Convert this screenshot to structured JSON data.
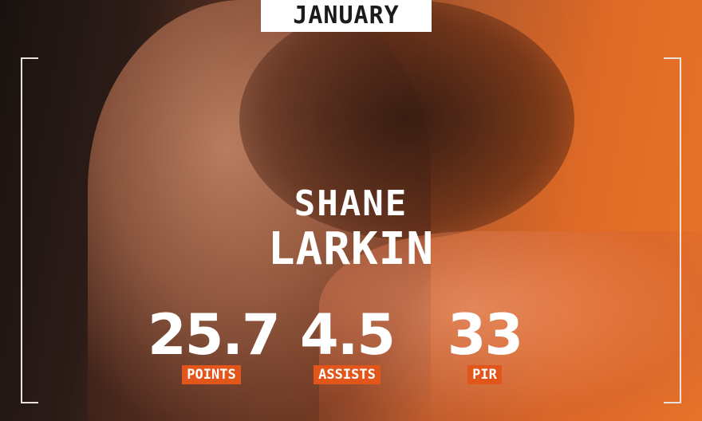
{
  "month": "JANUARY",
  "player": {
    "first_name": "SHANE",
    "last_name": "LARKIN"
  },
  "stats": [
    {
      "value": "25.7",
      "label": "POINTS"
    },
    {
      "value": "4.5",
      "label": "ASSISTS"
    },
    {
      "value": "33",
      "label": "PIR"
    }
  ],
  "colors": {
    "accent": "#e2561b",
    "background_orange": "#e8742a",
    "text": "#ffffff"
  }
}
